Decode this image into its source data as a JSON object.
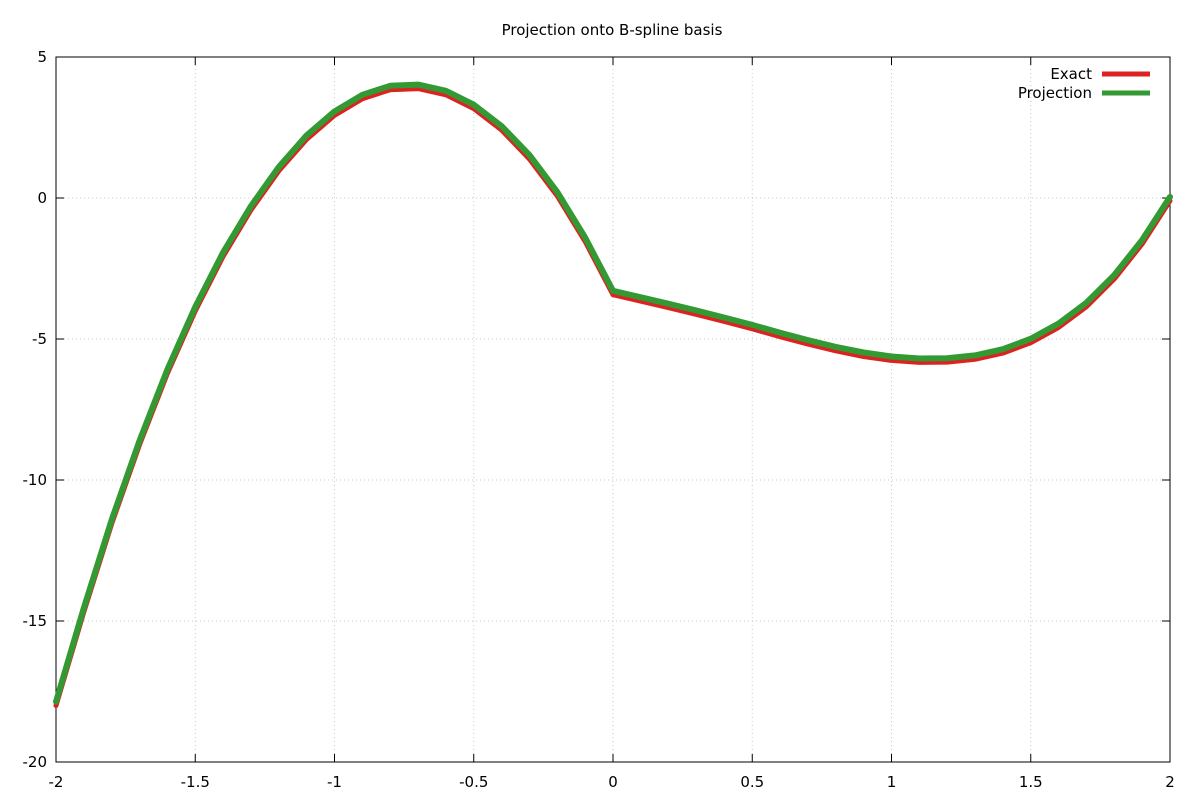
{
  "chart_data": {
    "type": "line",
    "title": "Projection onto B-spline basis",
    "xlabel": "",
    "ylabel": "",
    "xlim": [
      -2,
      2
    ],
    "ylim": [
      -20,
      5
    ],
    "x_ticks": [
      -2,
      -1.5,
      -1,
      -0.5,
      0,
      0.5,
      1,
      1.5,
      2
    ],
    "x_tick_labels": [
      "-2",
      "-1.5",
      "-1",
      "-0.5",
      "0",
      "0.5",
      "1",
      "1.5",
      "2"
    ],
    "y_ticks": [
      -20,
      -15,
      -10,
      -5,
      0,
      5
    ],
    "y_tick_labels": [
      "-20",
      "-15",
      "-10",
      "-5",
      "0",
      "5"
    ],
    "grid": true,
    "legend_position": "top-right",
    "x": [
      -2.0,
      -1.9,
      -1.8,
      -1.7,
      -1.6,
      -1.5,
      -1.4,
      -1.3,
      -1.2,
      -1.1,
      -1.0,
      -0.9,
      -0.8,
      -0.7,
      -0.6,
      -0.5,
      -0.4,
      -0.3,
      -0.2,
      -0.1,
      0.0,
      0.1,
      0.2,
      0.3,
      0.4,
      0.5,
      0.6,
      0.7,
      0.8,
      0.9,
      1.0,
      1.1,
      1.2,
      1.3,
      1.4,
      1.5,
      1.6,
      1.7,
      1.8,
      1.9,
      2.0
    ],
    "series": [
      {
        "name": "Exact",
        "color": "#dd2222",
        "values": [
          -18.0,
          -14.67,
          -11.55,
          -8.74,
          -6.22,
          -4.0,
          -2.07,
          -0.43,
          0.96,
          2.08,
          2.93,
          3.52,
          3.84,
          3.88,
          3.66,
          3.17,
          2.41,
          1.38,
          0.07,
          -1.54,
          -3.43,
          -3.66,
          -3.89,
          -4.13,
          -4.38,
          -4.64,
          -4.92,
          -5.18,
          -5.42,
          -5.62,
          -5.76,
          -5.83,
          -5.82,
          -5.72,
          -5.5,
          -5.13,
          -4.59,
          -3.85,
          -2.87,
          -1.63,
          -0.1
        ]
      },
      {
        "name": "Projection",
        "color": "#339933",
        "values": [
          -17.86,
          -14.53,
          -11.41,
          -8.6,
          -6.08,
          -3.86,
          -1.93,
          -0.29,
          1.1,
          2.22,
          3.07,
          3.66,
          3.98,
          4.02,
          3.8,
          3.31,
          2.55,
          1.52,
          0.21,
          -1.4,
          -3.29,
          -3.52,
          -3.75,
          -3.99,
          -4.24,
          -4.5,
          -4.78,
          -5.04,
          -5.28,
          -5.48,
          -5.62,
          -5.69,
          -5.68,
          -5.58,
          -5.36,
          -4.99,
          -4.45,
          -3.71,
          -2.73,
          -1.49,
          0.04
        ]
      }
    ]
  }
}
